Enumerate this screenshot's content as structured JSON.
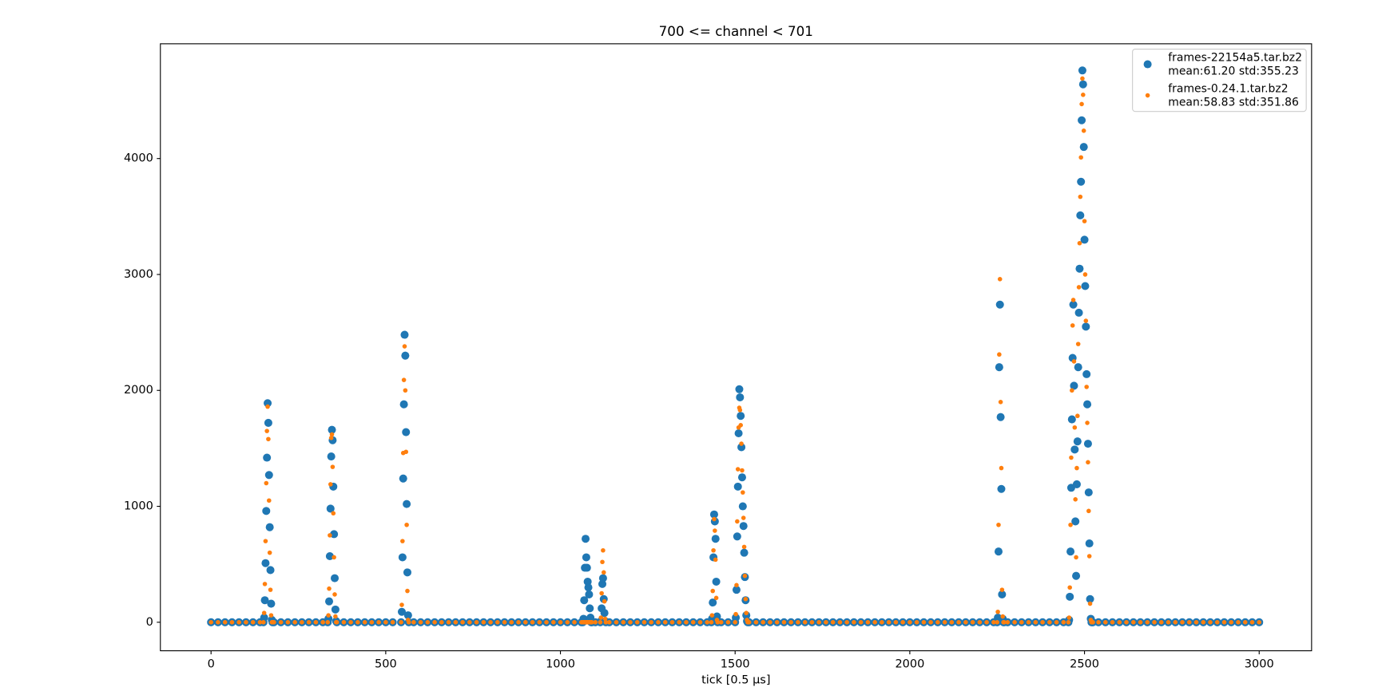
{
  "chart_data": {
    "type": "scatter",
    "title": "700 <= channel < 701",
    "x_label": "tick [0.5 μs]",
    "xlim": [
      -145,
      3150
    ],
    "xticks": [
      0,
      500,
      1000,
      1500,
      2000,
      2500,
      3000
    ],
    "ylim": [
      -246,
      4990
    ],
    "yticks": [
      0,
      1000,
      2000,
      3000,
      4000
    ],
    "legend": "upper right",
    "x": [
      0,
      20,
      40,
      60,
      80,
      100,
      120,
      140,
      150,
      152,
      154,
      156,
      158,
      160,
      162,
      164,
      166,
      168,
      170,
      172,
      174,
      176,
      180,
      200,
      220,
      240,
      260,
      280,
      300,
      320,
      334,
      336,
      338,
      340,
      342,
      344,
      346,
      348,
      350,
      352,
      354,
      356,
      358,
      360,
      380,
      400,
      420,
      440,
      460,
      480,
      500,
      520,
      544,
      546,
      548,
      550,
      552,
      554,
      556,
      558,
      560,
      562,
      564,
      566,
      580,
      600,
      620,
      640,
      660,
      680,
      700,
      720,
      740,
      760,
      780,
      800,
      820,
      840,
      860,
      880,
      900,
      920,
      940,
      960,
      980,
      1000,
      1020,
      1040,
      1060,
      1064,
      1066,
      1068,
      1070,
      1072,
      1074,
      1076,
      1078,
      1080,
      1082,
      1084,
      1086,
      1088,
      1090,
      1100,
      1114,
      1116,
      1118,
      1120,
      1122,
      1124,
      1126,
      1128,
      1130,
      1140,
      1160,
      1180,
      1200,
      1220,
      1240,
      1260,
      1280,
      1300,
      1320,
      1340,
      1360,
      1380,
      1400,
      1420,
      1432,
      1434,
      1436,
      1438,
      1440,
      1442,
      1444,
      1446,
      1448,
      1450,
      1460,
      1480,
      1500,
      1502,
      1504,
      1506,
      1508,
      1510,
      1512,
      1514,
      1516,
      1518,
      1520,
      1522,
      1524,
      1526,
      1528,
      1530,
      1532,
      1534,
      1536,
      1540,
      1560,
      1580,
      1600,
      1620,
      1640,
      1660,
      1680,
      1700,
      1720,
      1740,
      1760,
      1780,
      1800,
      1820,
      1840,
      1860,
      1880,
      1900,
      1920,
      1940,
      1960,
      1980,
      2000,
      2020,
      2040,
      2060,
      2080,
      2100,
      2120,
      2140,
      2160,
      2180,
      2200,
      2220,
      2240,
      2250,
      2252,
      2254,
      2256,
      2258,
      2260,
      2262,
      2264,
      2266,
      2268,
      2270,
      2280,
      2300,
      2320,
      2340,
      2360,
      2380,
      2400,
      2420,
      2440,
      2454,
      2456,
      2458,
      2460,
      2462,
      2464,
      2466,
      2468,
      2470,
      2472,
      2474,
      2476,
      2478,
      2480,
      2482,
      2484,
      2486,
      2488,
      2490,
      2492,
      2494,
      2496,
      2498,
      2500,
      2502,
      2504,
      2506,
      2508,
      2510,
      2512,
      2514,
      2516,
      2518,
      2520,
      2522,
      2524,
      2540,
      2560,
      2580,
      2600,
      2620,
      2640,
      2660,
      2680,
      2700,
      2720,
      2740,
      2760,
      2780,
      2800,
      2820,
      2840,
      2860,
      2880,
      2900,
      2920,
      2940,
      2960,
      2980,
      3000
    ],
    "series": [
      {
        "name": "frames-22154a5.tar.bz2",
        "stats": "mean:61.20 std:355.23",
        "color": "#1f77b4",
        "marker_size": 4.5,
        "values": [
          0,
          0,
          0,
          0,
          0,
          0,
          0,
          0,
          0,
          40,
          190,
          510,
          960,
          1420,
          1890,
          1720,
          1270,
          820,
          450,
          160,
          20,
          0,
          0,
          0,
          0,
          0,
          0,
          0,
          0,
          0,
          0,
          30,
          180,
          570,
          980,
          1430,
          1660,
          1570,
          1170,
          760,
          380,
          110,
          10,
          0,
          0,
          0,
          0,
          0,
          0,
          0,
          0,
          0,
          0,
          90,
          560,
          1240,
          1880,
          2480,
          2300,
          1640,
          1020,
          430,
          60,
          0,
          0,
          0,
          0,
          0,
          0,
          0,
          0,
          0,
          0,
          0,
          0,
          0,
          0,
          0,
          0,
          0,
          0,
          0,
          0,
          0,
          0,
          0,
          0,
          0,
          0,
          0,
          30,
          190,
          470,
          720,
          560,
          470,
          350,
          300,
          240,
          120,
          40,
          0,
          0,
          0,
          0,
          10,
          120,
          330,
          380,
          200,
          80,
          10,
          0,
          0,
          0,
          0,
          0,
          0,
          0,
          0,
          0,
          0,
          0,
          0,
          0,
          0,
          0,
          0,
          0,
          30,
          170,
          560,
          930,
          870,
          720,
          350,
          50,
          0,
          0,
          0,
          0,
          40,
          280,
          740,
          1170,
          1630,
          2010,
          1940,
          1780,
          1510,
          1250,
          1000,
          830,
          600,
          390,
          190,
          60,
          10,
          0,
          0,
          0,
          0,
          0,
          0,
          0,
          0,
          0,
          0,
          0,
          0,
          0,
          0,
          0,
          0,
          0,
          0,
          0,
          0,
          0,
          0,
          0,
          0,
          0,
          0,
          0,
          0,
          0,
          0,
          0,
          0,
          0,
          0,
          0,
          0,
          0,
          0,
          40,
          610,
          2200,
          2740,
          1770,
          1150,
          240,
          30,
          0,
          0,
          0,
          0,
          0,
          0,
          0,
          0,
          0,
          0,
          0,
          0,
          20,
          220,
          610,
          1160,
          1750,
          2280,
          2740,
          2040,
          1490,
          870,
          400,
          1190,
          1560,
          2200,
          2670,
          3050,
          3510,
          3800,
          4330,
          4760,
          4640,
          4100,
          3300,
          2900,
          2550,
          2140,
          1880,
          1540,
          1120,
          680,
          200,
          30,
          0,
          0,
          0,
          0,
          0,
          0,
          0,
          0,
          0,
          0,
          0,
          0,
          0,
          0,
          0,
          0,
          0,
          0,
          0,
          0,
          0,
          0,
          0,
          0,
          0,
          0,
          0
        ]
      },
      {
        "name": "frames-0.24.1.tar.bz2",
        "stats": "mean:58.83 std:351.86",
        "color": "#ff7f0e",
        "marker_size": 2.5,
        "values": [
          0,
          0,
          0,
          0,
          0,
          0,
          0,
          0,
          0,
          80,
          330,
          700,
          1200,
          1650,
          1860,
          1580,
          1050,
          600,
          280,
          60,
          0,
          0,
          0,
          0,
          0,
          0,
          0,
          0,
          0,
          0,
          0,
          60,
          290,
          750,
          1190,
          1590,
          1620,
          1340,
          940,
          560,
          240,
          50,
          0,
          0,
          0,
          0,
          0,
          0,
          0,
          0,
          0,
          0,
          0,
          150,
          700,
          1460,
          2090,
          2380,
          2000,
          1470,
          840,
          270,
          20,
          0,
          0,
          0,
          0,
          0,
          0,
          0,
          0,
          0,
          0,
          0,
          0,
          0,
          0,
          0,
          0,
          0,
          0,
          0,
          0,
          0,
          0,
          0,
          0,
          0,
          0,
          0,
          0,
          0,
          0,
          0,
          0,
          0,
          0,
          0,
          0,
          0,
          0,
          0,
          0,
          0,
          0,
          40,
          250,
          520,
          620,
          430,
          180,
          30,
          0,
          0,
          0,
          0,
          0,
          0,
          0,
          0,
          0,
          0,
          0,
          0,
          0,
          0,
          0,
          0,
          0,
          60,
          270,
          620,
          890,
          790,
          540,
          210,
          20,
          0,
          0,
          0,
          0,
          70,
          320,
          870,
          1320,
          1680,
          1850,
          1830,
          1700,
          1540,
          1310,
          1120,
          900,
          650,
          400,
          200,
          80,
          20,
          0,
          0,
          0,
          0,
          0,
          0,
          0,
          0,
          0,
          0,
          0,
          0,
          0,
          0,
          0,
          0,
          0,
          0,
          0,
          0,
          0,
          0,
          0,
          0,
          0,
          0,
          0,
          0,
          0,
          0,
          0,
          0,
          0,
          0,
          0,
          0,
          0,
          0,
          90,
          840,
          2310,
          2960,
          1900,
          1330,
          280,
          50,
          0,
          0,
          0,
          0,
          0,
          0,
          0,
          0,
          0,
          0,
          0,
          0,
          40,
          300,
          840,
          1420,
          2000,
          2560,
          2780,
          2250,
          1680,
          1060,
          560,
          1330,
          1780,
          2400,
          2890,
          3270,
          3670,
          4010,
          4470,
          4690,
          4550,
          4240,
          3460,
          3000,
          2600,
          2030,
          1720,
          1380,
          960,
          570,
          160,
          20,
          0,
          0,
          0,
          0,
          0,
          0,
          0,
          0,
          0,
          0,
          0,
          0,
          0,
          0,
          0,
          0,
          0,
          0,
          0,
          0,
          0,
          0,
          0,
          0,
          0,
          0,
          0
        ]
      }
    ]
  }
}
